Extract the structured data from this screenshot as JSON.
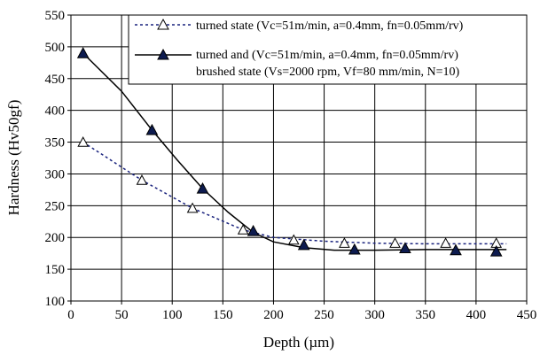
{
  "chart_data": {
    "type": "line",
    "xlabel": "Depth (µm)",
    "ylabel": "Hardness (Hv50gf)",
    "xlim": [
      0,
      450
    ],
    "ylim": [
      100,
      550
    ],
    "x_ticks": [
      0,
      50,
      100,
      150,
      200,
      250,
      300,
      350,
      400,
      450
    ],
    "y_ticks": [
      100,
      150,
      200,
      250,
      300,
      350,
      400,
      450,
      500,
      550
    ],
    "x_tick_labels": [
      "0",
      "50",
      "100",
      "150",
      "200",
      "250",
      "300",
      "350",
      "400",
      "450"
    ],
    "y_tick_labels": [
      "100",
      "150",
      "200",
      "250",
      "300",
      "350",
      "400",
      "450",
      "500",
      "550"
    ],
    "grid": true,
    "legend_position": "top-right",
    "series": [
      {
        "name": "turned state (Vc=51m/min, a=0.4mm, fn=0.05mm/rv)",
        "legend_lines": [
          "turned state (Vc=51m/min, a=0.4mm, fn=0.05mm/rv)"
        ],
        "color": "#1a237e",
        "line_style": "dashed",
        "marker": "open-triangle",
        "points": [
          [
            12,
            350
          ],
          [
            70,
            290
          ],
          [
            120,
            246
          ],
          [
            170,
            212
          ],
          [
            220,
            196
          ],
          [
            270,
            191
          ],
          [
            320,
            191
          ],
          [
            370,
            191
          ],
          [
            420,
            191
          ]
        ],
        "fit_curve": [
          [
            12,
            350
          ],
          [
            70,
            290
          ],
          [
            120,
            246
          ],
          [
            170,
            212
          ],
          [
            200,
            200
          ],
          [
            250,
            194
          ],
          [
            300,
            191
          ],
          [
            350,
            190
          ],
          [
            400,
            190
          ],
          [
            430,
            190
          ]
        ]
      },
      {
        "name": "turned and brushed state (Vc=51m/min, a=0.4mm, fn=0.05mm/rv) (Vs=2000 rpm, Vf=80 mm/min, N=10)",
        "legend_lines": [
          "turned and (Vc=51m/min, a=0.4mm, fn=0.05mm/rv)",
          "brushed state (Vs=2000 rpm, Vf=80 mm/min, N=10)"
        ],
        "color": "#000000",
        "line_style": "solid",
        "marker": "filled-triangle",
        "marker_color": "#0d1b4f",
        "points": [
          [
            12,
            490
          ],
          [
            80,
            369
          ],
          [
            130,
            277
          ],
          [
            180,
            210
          ],
          [
            230,
            188
          ],
          [
            280,
            181
          ],
          [
            330,
            183
          ],
          [
            380,
            180
          ],
          [
            420,
            178
          ]
        ],
        "fit_curve": [
          [
            12,
            490
          ],
          [
            50,
            430
          ],
          [
            80,
            369
          ],
          [
            105,
            322
          ],
          [
            130,
            277
          ],
          [
            155,
            240
          ],
          [
            180,
            208
          ],
          [
            200,
            193
          ],
          [
            230,
            184
          ],
          [
            260,
            180
          ],
          [
            300,
            180
          ],
          [
            350,
            181
          ],
          [
            400,
            181
          ],
          [
            430,
            181
          ]
        ]
      }
    ]
  }
}
